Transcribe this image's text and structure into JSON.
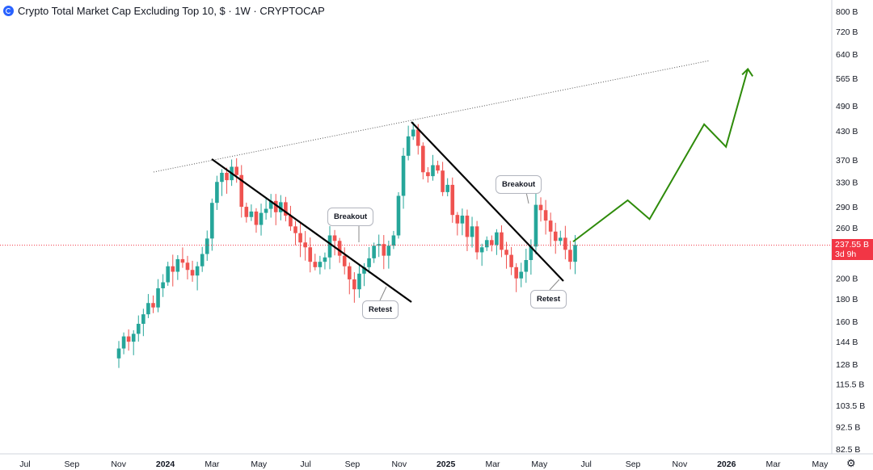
{
  "header": {
    "title": "Crypto Total Market Cap Excluding Top 10, $ · 1W · CRYPTOCAP"
  },
  "price_badge": {
    "value": "237.55 B",
    "countdown": "3d 9h"
  },
  "annotations": {
    "breakout_1": "Breakout",
    "retest_1": "Retest",
    "breakout_2": "Breakout",
    "retest_2": "Retest"
  },
  "colors": {
    "up": "#26a69a",
    "down": "#ef5350",
    "trendline": "#000000",
    "projection": "#2e8b0a",
    "price_line": "#f23645",
    "badge": "#f23645"
  },
  "chart_data": {
    "type": "candlestick",
    "title": "Crypto Total Market Cap Excluding Top 10, $ · 1W · CRYPTOCAP",
    "y_axis": {
      "scale": "log",
      "unit": "B",
      "range": [
        82.5,
        800
      ],
      "ticks": [
        "800 B",
        "720 B",
        "640 B",
        "565 B",
        "490 B",
        "430 B",
        "370 B",
        "330 B",
        "290 B",
        "260 B",
        "200 B",
        "180 B",
        "160 B",
        "144 B",
        "128 B",
        "115.5 B",
        "103.5 B",
        "92.5 B",
        "82.5 B"
      ]
    },
    "x_axis": {
      "ticks": [
        "Jul",
        "Sep",
        "Nov",
        "2024",
        "Mar",
        "May",
        "Jul",
        "Sep",
        "Nov",
        "2025",
        "Mar",
        "May",
        "Jul",
        "Sep",
        "Nov",
        "2026",
        "Mar",
        "May"
      ]
    },
    "last_price": 237.55,
    "closes": [
      139,
      148,
      144,
      150,
      158,
      166,
      176,
      172,
      190,
      196,
      213,
      207,
      221,
      217,
      209,
      203,
      213,
      227,
      246,
      296,
      330,
      346,
      333,
      357,
      342,
      290,
      275,
      283,
      264,
      281,
      287,
      299,
      282,
      297,
      277,
      262,
      253,
      241,
      235,
      218,
      212,
      218,
      223,
      250,
      243,
      225,
      213,
      199,
      189,
      205,
      212,
      222,
      237,
      239,
      225,
      237,
      250,
      307,
      378,
      418,
      433,
      398,
      347,
      340,
      360,
      350,
      313,
      325,
      278,
      266,
      277,
      248,
      262,
      229,
      235,
      244,
      238,
      254,
      232,
      226,
      212,
      200,
      207,
      220,
      236,
      293,
      285,
      270,
      255,
      243,
      247,
      232,
      218,
      238
    ],
    "projection": [
      {
        "date": "2025-06-23",
        "value": 242
      },
      {
        "date": "2025-07-28",
        "value": 300
      },
      {
        "date": "2025-08-11",
        "value": 272
      },
      {
        "date": "2025-09-15",
        "value": 445
      },
      {
        "date": "2025-09-29",
        "value": 396
      },
      {
        "date": "2025-10-13",
        "value": 593
      }
    ]
  }
}
